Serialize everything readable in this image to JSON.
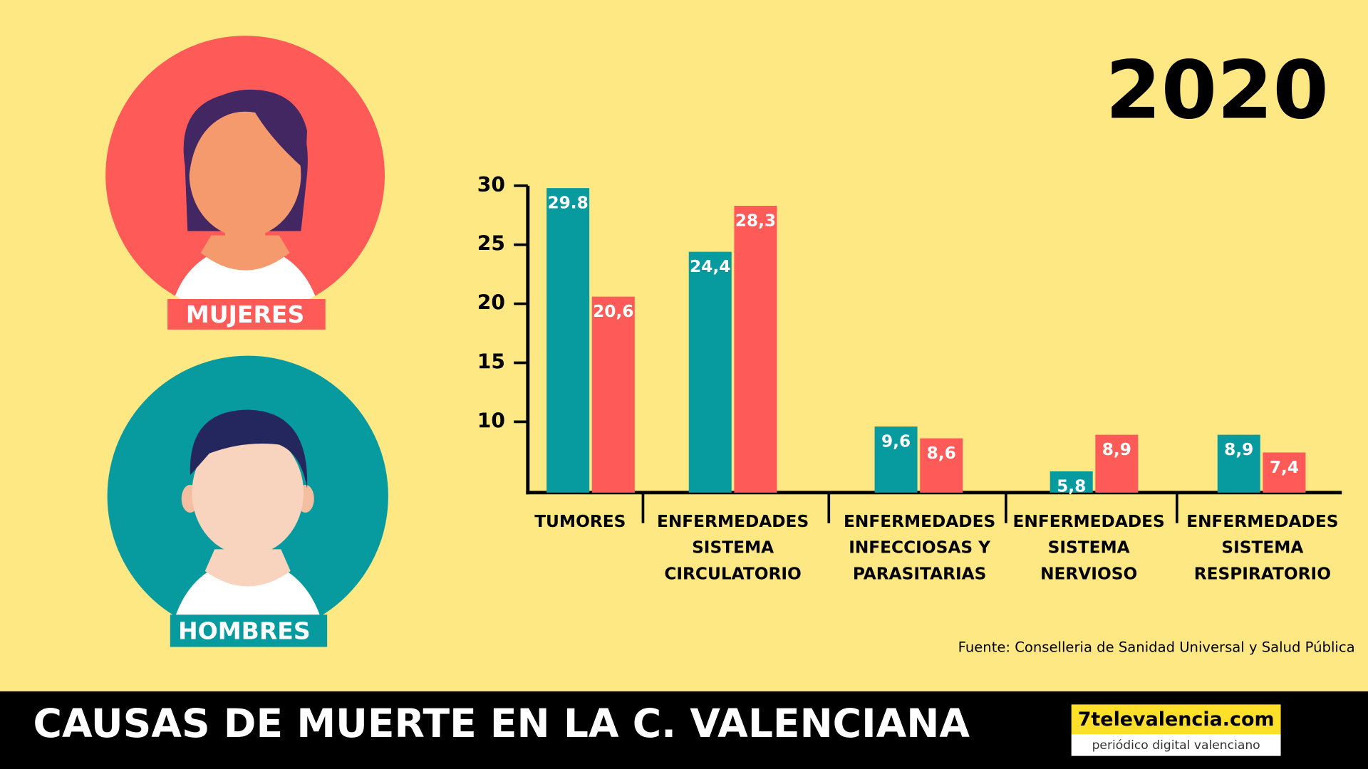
{
  "chart_data": {
    "type": "bar",
    "title": "CAUSAS DE MUERTE EN LA C. VALENCIANA",
    "subtitle": "2020",
    "source": "Fuente: Conselleria de Sanidad Universal y Salud Pública",
    "brand": {
      "name": "7televalencia.com",
      "tagline": "periódico digital valenciano"
    },
    "categories": [
      [
        "TUMORES"
      ],
      [
        "ENFERMEDADES",
        "SISTEMA",
        "CIRCULATORIO"
      ],
      [
        "ENFERMEDADES",
        "INFECCIOSAS Y",
        "PARASITARIAS"
      ],
      [
        "ENFERMEDADES",
        "SISTEMA",
        "NERVIOSO"
      ],
      [
        "ENFERMEDADES",
        "SISTEMA",
        "RESPIRATORIO"
      ]
    ],
    "series": [
      {
        "name": "HOMBRES",
        "color": "#079a9e",
        "values": [
          29.8,
          24.4,
          9.6,
          5.8,
          8.9
        ],
        "value_labels": [
          "29.8",
          "24,4",
          "9,6",
          "5,8",
          "8,9"
        ]
      },
      {
        "name": "MUJERES",
        "color": "#fe5a57",
        "values": [
          20.6,
          28.3,
          8.6,
          8.9,
          7.4
        ],
        "value_labels": [
          "20,6",
          "28,3",
          "8,6",
          "8,9",
          "7,4"
        ]
      }
    ],
    "ylim": [
      4,
      30
    ],
    "yticks": [
      10,
      15,
      20,
      25,
      30
    ]
  }
}
